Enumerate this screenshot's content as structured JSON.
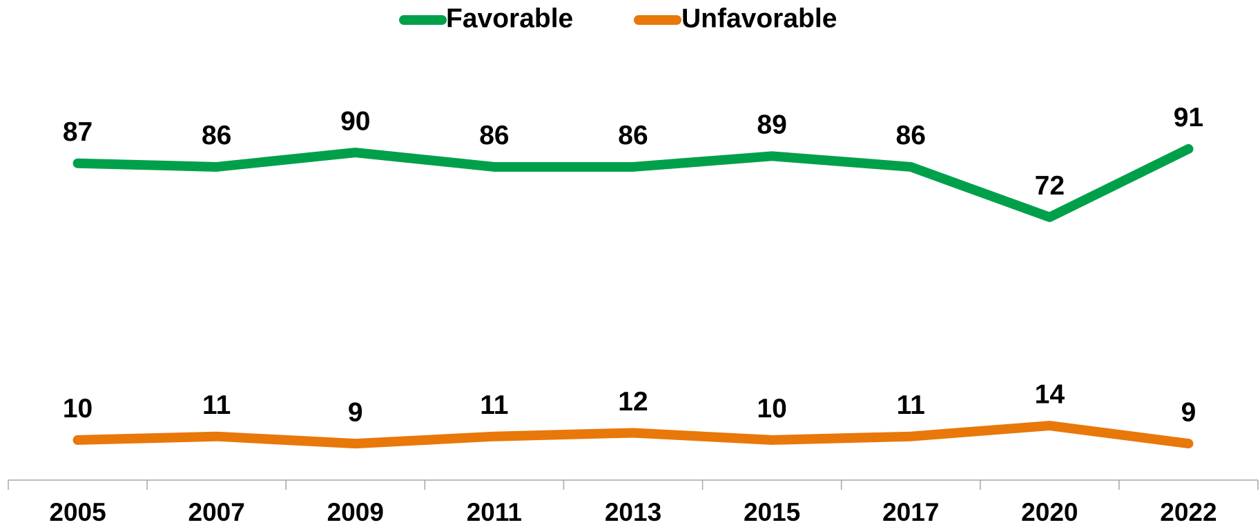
{
  "chart_data": {
    "type": "line",
    "categories": [
      "2005",
      "2007",
      "2009",
      "2011",
      "2013",
      "2015",
      "2017",
      "2020",
      "2022"
    ],
    "series": [
      {
        "name": "Favorable",
        "color": "#00a04b",
        "values": [
          87,
          86,
          90,
          86,
          86,
          89,
          86,
          72,
          91
        ]
      },
      {
        "name": "Unfavorable",
        "color": "#e8780a",
        "values": [
          10,
          11,
          9,
          11,
          12,
          10,
          11,
          14,
          9
        ]
      }
    ],
    "ylim": [
      0,
      100
    ],
    "legend": "top"
  }
}
